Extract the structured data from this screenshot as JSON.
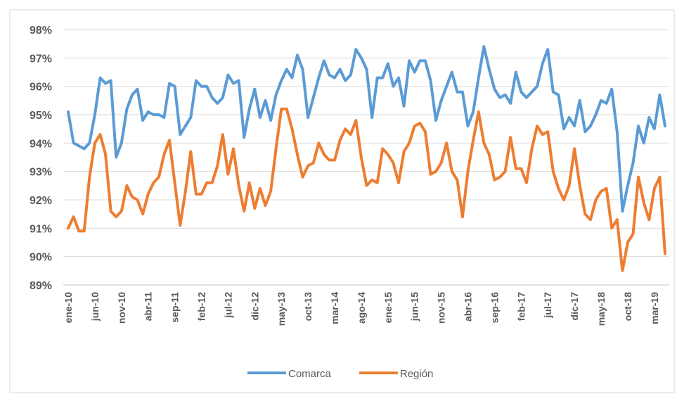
{
  "chart_data": {
    "type": "line",
    "categories": [
      "ene-10",
      null,
      null,
      null,
      null,
      "jun-10",
      null,
      null,
      null,
      null,
      "nov-10",
      null,
      null,
      null,
      null,
      "abr-11",
      null,
      null,
      null,
      null,
      "sep-11",
      null,
      null,
      null,
      null,
      "feb-12",
      null,
      null,
      null,
      null,
      "jul-12",
      null,
      null,
      null,
      null,
      "dic-12",
      null,
      null,
      null,
      null,
      "may-13",
      null,
      null,
      null,
      null,
      "oct-13",
      null,
      null,
      null,
      null,
      "mar-14",
      null,
      null,
      null,
      null,
      "ago-14",
      null,
      null,
      null,
      null,
      "ene-15",
      null,
      null,
      null,
      null,
      "jun-15",
      null,
      null,
      null,
      null,
      "nov-15",
      null,
      null,
      null,
      null,
      "abr-16",
      null,
      null,
      null,
      null,
      "sep-16",
      null,
      null,
      null,
      null,
      "feb-17",
      null,
      null,
      null,
      null,
      "jul-17",
      null,
      null,
      null,
      null,
      "dic-17",
      null,
      null,
      null,
      null,
      "may-18",
      null,
      null,
      null,
      null,
      "oct-18",
      null,
      null,
      null,
      null,
      "mar-19",
      null,
      null
    ],
    "series": [
      {
        "name": "Comarca",
        "color": "#5b9bd5",
        "values": [
          95.1,
          94.0,
          93.9,
          93.8,
          94.0,
          95.0,
          96.3,
          96.1,
          96.2,
          93.5,
          94.0,
          95.2,
          95.7,
          95.9,
          94.8,
          95.1,
          95.0,
          95.0,
          94.9,
          96.1,
          96.0,
          94.3,
          94.6,
          94.9,
          96.2,
          96.0,
          96.0,
          95.6,
          95.4,
          95.6,
          96.4,
          96.1,
          96.2,
          94.2,
          95.2,
          95.9,
          94.9,
          95.5,
          94.8,
          95.7,
          96.2,
          96.6,
          96.3,
          97.1,
          96.6,
          94.9,
          95.6,
          96.3,
          96.9,
          96.4,
          96.3,
          96.6,
          96.2,
          96.4,
          97.3,
          97.0,
          96.6,
          94.9,
          96.3,
          96.3,
          96.8,
          96.0,
          96.3,
          95.3,
          96.9,
          96.5,
          96.9,
          96.9,
          96.2,
          94.8,
          95.5,
          96.0,
          96.5,
          95.8,
          95.8,
          94.6,
          95.1,
          96.3,
          97.4,
          96.6,
          95.9,
          95.6,
          95.7,
          95.4,
          96.5,
          95.8,
          95.6,
          95.8,
          96.0,
          96.8,
          97.3,
          95.8,
          95.7,
          94.5,
          94.9,
          94.6,
          95.5,
          94.4,
          94.6,
          95.0,
          95.5,
          95.4,
          95.9,
          94.4,
          91.6,
          92.5,
          93.3,
          94.6,
          94.0,
          94.9,
          94.5,
          95.7,
          94.6
        ]
      },
      {
        "name": "Región",
        "color": "#ed7d31",
        "values": [
          91.0,
          91.4,
          90.9,
          90.9,
          92.8,
          94.0,
          94.3,
          93.6,
          91.6,
          91.4,
          91.6,
          92.5,
          92.1,
          92.0,
          91.5,
          92.2,
          92.6,
          92.8,
          93.6,
          94.1,
          92.6,
          91.1,
          92.3,
          93.7,
          92.2,
          92.2,
          92.6,
          92.6,
          93.2,
          94.3,
          92.9,
          93.8,
          92.5,
          91.6,
          92.6,
          91.7,
          92.4,
          91.8,
          92.3,
          93.8,
          95.2,
          95.2,
          94.5,
          93.6,
          92.8,
          93.2,
          93.3,
          94.0,
          93.6,
          93.4,
          93.4,
          94.1,
          94.5,
          94.3,
          94.8,
          93.5,
          92.5,
          92.7,
          92.6,
          93.8,
          93.6,
          93.3,
          92.6,
          93.7,
          94.0,
          94.6,
          94.7,
          94.4,
          92.9,
          93.0,
          93.3,
          94.0,
          93.0,
          92.7,
          91.4,
          93.0,
          94.1,
          95.1,
          94.0,
          93.6,
          92.7,
          92.8,
          93.0,
          94.2,
          93.1,
          93.1,
          92.6,
          93.8,
          94.6,
          94.3,
          94.4,
          93.0,
          92.4,
          92.0,
          92.5,
          93.8,
          92.5,
          91.5,
          91.3,
          92.0,
          92.3,
          92.4,
          91.0,
          91.3,
          89.5,
          90.5,
          90.8,
          92.8,
          91.9,
          91.3,
          92.4,
          92.8,
          90.1
        ]
      }
    ],
    "ylim": [
      89,
      98
    ],
    "yticks": [
      {
        "value": 89,
        "label": "89%"
      },
      {
        "value": 90,
        "label": "90%"
      },
      {
        "value": 91,
        "label": "91%"
      },
      {
        "value": 92,
        "label": "92%"
      },
      {
        "value": 93,
        "label": "93%"
      },
      {
        "value": 94,
        "label": "94%"
      },
      {
        "value": 95,
        "label": "95%"
      },
      {
        "value": 96,
        "label": "96%"
      },
      {
        "value": 97,
        "label": "97%"
      },
      {
        "value": 98,
        "label": "98%"
      }
    ],
    "grid": true
  }
}
